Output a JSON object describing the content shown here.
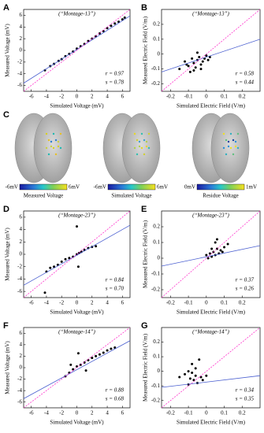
{
  "chart_data": [
    {
      "type": "scatter",
      "panel_label": "A",
      "title": "(“Montage-13”)",
      "x_label": "Simulated Voltage (mV)",
      "y_label": "Measured Voltage (mV)",
      "xlim": [
        -7,
        7
      ],
      "ylim": [
        -7,
        7
      ],
      "xticks": [
        -6,
        -4,
        -2,
        0,
        2,
        4,
        6
      ],
      "yticks": [
        -6,
        -4,
        -2,
        0,
        2,
        4,
        6
      ],
      "series": [
        {
          "type": "scatter",
          "color": "#000000",
          "x": [
            -4.2,
            -3.5,
            -3,
            -2.4,
            -2,
            -1.5,
            -1,
            -0.5,
            0,
            0.5,
            1,
            1.5,
            2,
            2.5,
            3,
            3.5,
            4,
            4.5,
            5,
            5.5,
            6,
            6.3
          ],
          "y": [
            -3.4,
            -2.7,
            -2.3,
            -1.8,
            -1.5,
            -1,
            -0.6,
            -0.2,
            0.3,
            0.7,
            1.1,
            1.6,
            2,
            2.4,
            2.9,
            3.3,
            3.8,
            4.2,
            4.6,
            4.9,
            5.3,
            5.6
          ]
        },
        {
          "type": "line",
          "color": "#4a5fd0",
          "x": [
            -7,
            7
          ],
          "y": [
            -5.6,
            5.9
          ]
        },
        {
          "type": "line",
          "color": "#ff33cc",
          "dash": true,
          "x": [
            -7,
            7
          ],
          "y": [
            -7,
            7
          ]
        }
      ],
      "annotations": [
        "r = 0.97",
        "s = 0.78"
      ]
    },
    {
      "type": "scatter",
      "panel_label": "B",
      "title": "(“Montage-13”)",
      "x_label": "Simulated Electric Field (V/m)",
      "y_label": "Measured Electric Field (V/m)",
      "xlim": [
        -0.25,
        0.3
      ],
      "ylim": [
        -0.25,
        0.3
      ],
      "xticks": [
        -0.2,
        -0.1,
        0,
        0.1,
        0.2
      ],
      "yticks": [
        -0.2,
        -0.1,
        0,
        0.1,
        0.2
      ],
      "series": [
        {
          "type": "scatter",
          "color": "#000000",
          "x": [
            -0.15,
            -0.12,
            -0.1,
            -0.08,
            -0.07,
            -0.06,
            -0.05,
            -0.04,
            -0.03,
            -0.02,
            -0.01,
            0,
            0.01,
            -0.09,
            -0.05,
            -0.11,
            -0.03,
            -0.07,
            0.02
          ],
          "y": [
            -0.1,
            -0.05,
            -0.08,
            -0.03,
            -0.06,
            -0.09,
            -0.04,
            -0.02,
            -0.07,
            -0.05,
            -0.03,
            -0.01,
            -0.04,
            -0.12,
            0.01,
            -0.07,
            -0.1,
            -0.11,
            -0.02
          ]
        },
        {
          "type": "line",
          "color": "#4a5fd0",
          "x": [
            -0.25,
            0.3
          ],
          "y": [
            -0.12,
            0.1
          ]
        },
        {
          "type": "line",
          "color": "#ff33cc",
          "dash": true,
          "x": [
            -0.25,
            0.3
          ],
          "y": [
            -0.25,
            0.3
          ]
        }
      ],
      "annotations": [
        "r = 0.58",
        "s = 0.44"
      ]
    },
    {
      "type": "scatter",
      "panel_label": "D",
      "title": "(“Montage-23”)",
      "x_label": "Simulated Voltage (mV)",
      "y_label": "Measured Voltage (mV)",
      "xlim": [
        -7,
        7
      ],
      "ylim": [
        -7,
        7
      ],
      "xticks": [
        -6,
        -4,
        -2,
        0,
        2,
        4,
        6
      ],
      "yticks": [
        -6,
        -4,
        -2,
        0,
        2,
        4,
        6
      ],
      "series": [
        {
          "type": "scatter",
          "color": "#000000",
          "x": [
            -4,
            -3.5,
            -3,
            -2.5,
            -2,
            -1.5,
            -1,
            -0.5,
            0,
            0.3,
            0.6,
            1,
            1.5,
            2,
            2.5,
            0,
            -4.2,
            0.2
          ],
          "y": [
            -2.8,
            -2.2,
            -2,
            -1.7,
            -1.2,
            -0.8,
            -0.6,
            -0.4,
            0,
            0.2,
            0.4,
            0.7,
            1,
            1.2,
            1.3,
            4.5,
            -6.2,
            -2
          ]
        },
        {
          "type": "line",
          "color": "#4a5fd0",
          "x": [
            -7,
            7
          ],
          "y": [
            -5,
            4.7
          ]
        },
        {
          "type": "line",
          "color": "#ff33cc",
          "dash": true,
          "x": [
            -7,
            7
          ],
          "y": [
            -7,
            7
          ]
        }
      ],
      "annotations": [
        "r = 0.84",
        "s = 0.70"
      ]
    },
    {
      "type": "scatter",
      "panel_label": "E",
      "title": "(“Montage-23”)",
      "x_label": "Simulated Electric Field (V/m)",
      "y_label": "Measured Electric Field (V/m)",
      "xlim": [
        -0.25,
        0.3
      ],
      "ylim": [
        -0.25,
        0.3
      ],
      "xticks": [
        -0.2,
        -0.1,
        0,
        0.1,
        0.2
      ],
      "yticks": [
        -0.2,
        -0.1,
        0,
        0.1,
        0.2
      ],
      "series": [
        {
          "type": "scatter",
          "color": "#000000",
          "x": [
            0,
            0.02,
            0.03,
            0.04,
            0.05,
            0.06,
            0.07,
            0.08,
            0.1,
            0.12,
            0.05,
            0.03,
            0.09,
            0.01,
            0.06
          ],
          "y": [
            0.02,
            0.03,
            0.01,
            0.04,
            0.02,
            0.06,
            0.03,
            0.05,
            0.07,
            0.09,
            0.1,
            0.06,
            0.04,
            0,
            0.12
          ]
        },
        {
          "type": "line",
          "color": "#4a5fd0",
          "x": [
            -0.25,
            0.3
          ],
          "y": [
            -0.05,
            0.08
          ]
        },
        {
          "type": "line",
          "color": "#ff33cc",
          "dash": true,
          "x": [
            -0.25,
            0.3
          ],
          "y": [
            -0.25,
            0.3
          ]
        }
      ],
      "annotations": [
        "r = 0.37",
        "s = 0.26"
      ]
    },
    {
      "type": "scatter",
      "panel_label": "F",
      "title": "(“Montage-14”)",
      "x_label": "Simulated Voltage (mV)",
      "y_label": "Measured Voltage (mV)",
      "xlim": [
        -7,
        7
      ],
      "ylim": [
        -7,
        7
      ],
      "xticks": [
        -6,
        -4,
        -2,
        0,
        2,
        4,
        6
      ],
      "yticks": [
        -6,
        -4,
        -2,
        0,
        2,
        4,
        6
      ],
      "series": [
        {
          "type": "scatter",
          "color": "#000000",
          "x": [
            -1.5,
            -1,
            -0.5,
            0,
            0.5,
            1,
            1.5,
            2,
            2.5,
            3,
            3.5,
            4,
            4.5,
            5,
            0.2,
            -0.8,
            1.2
          ],
          "y": [
            -1.5,
            -0.9,
            -0.3,
            0.2,
            0.5,
            0.9,
            1.3,
            1.7,
            2,
            2.3,
            2.6,
            3,
            3.3,
            3.5,
            2.5,
            0.5,
            -0.5
          ]
        },
        {
          "type": "line",
          "color": "#4a5fd0",
          "x": [
            -7,
            7
          ],
          "y": [
            -5.4,
            4.7
          ]
        },
        {
          "type": "line",
          "color": "#ff33cc",
          "dash": true,
          "x": [
            -7,
            7
          ],
          "y": [
            -7,
            7
          ]
        }
      ],
      "annotations": [
        "r = 0.88",
        "s = 0.68"
      ]
    },
    {
      "type": "scatter",
      "panel_label": "G",
      "title": "(“Montage-14”)",
      "x_label": "Simulated Electric Field (V/m)",
      "y_label": "Measured Electric Field (V/m)",
      "xlim": [
        -0.25,
        0.3
      ],
      "ylim": [
        -0.25,
        0.3
      ],
      "xticks": [
        -0.2,
        -0.1,
        0,
        0.1,
        0.2
      ],
      "yticks": [
        -0.2,
        -0.1,
        0,
        0.1,
        0.2
      ],
      "series": [
        {
          "type": "scatter",
          "color": "#000000",
          "x": [
            -0.15,
            -0.12,
            -0.1,
            -0.09,
            -0.08,
            -0.07,
            -0.06,
            -0.05,
            -0.04,
            -0.03,
            -0.02,
            0,
            -0.1,
            -0.06,
            -0.08
          ],
          "y": [
            -0.04,
            -0.02,
            0,
            -0.05,
            0.05,
            -0.06,
            -0.03,
            -0.08,
            0.08,
            -0.04,
            -0.06,
            -0.03,
            -0.09,
            0.02,
            -0.01
          ]
        },
        {
          "type": "line",
          "color": "#4a5fd0",
          "x": [
            -0.25,
            0.3
          ],
          "y": [
            -0.11,
            -0.03
          ]
        },
        {
          "type": "line",
          "color": "#ff33cc",
          "dash": true,
          "x": [
            -0.25,
            0.3
          ],
          "y": [
            -0.25,
            0.3
          ]
        }
      ],
      "annotations": [
        "r = 0.34",
        "s = 0.35"
      ]
    }
  ],
  "brain_panel": {
    "panel_label": "C",
    "colorbars": [
      {
        "min_label": "-6mV",
        "max_label": "6mV",
        "title": "Measured Voltage"
      },
      {
        "min_label": "-6mV",
        "max_label": "6mV",
        "title": "Simulated Voltage"
      },
      {
        "min_label": "0mV",
        "max_label": "1mV",
        "title": "Residue Voltage"
      }
    ]
  }
}
